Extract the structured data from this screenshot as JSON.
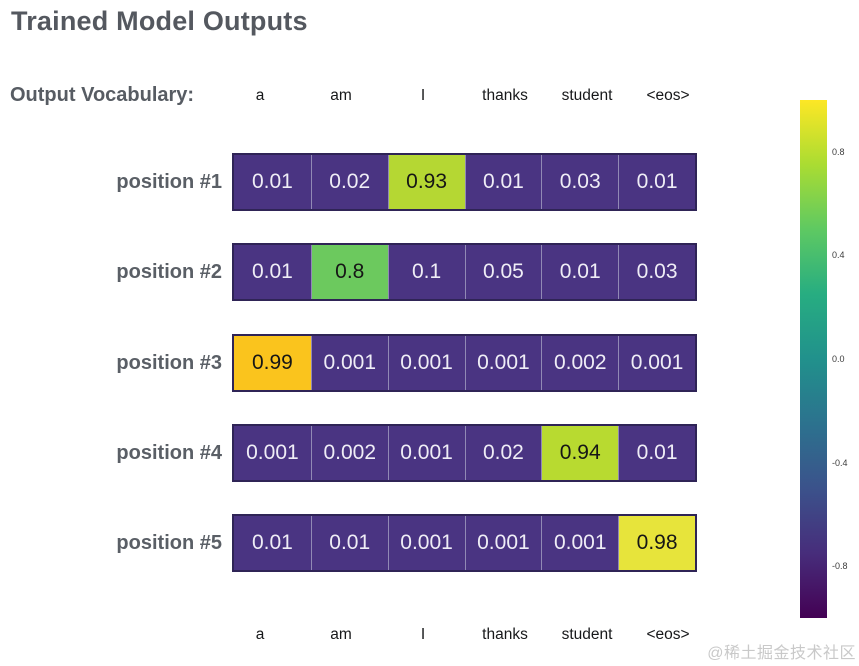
{
  "header": {
    "title": "Trained Model Outputs",
    "vocab_label": "Output Vocabulary:"
  },
  "chart_data": {
    "type": "heatmap",
    "title": "Trained Model Outputs",
    "columns": [
      "a",
      "am",
      "I",
      "thanks",
      "student",
      "<eos>"
    ],
    "rows": [
      "position #1",
      "position #2",
      "position #3",
      "position #4",
      "position #5"
    ],
    "values": [
      [
        0.01,
        0.02,
        0.93,
        0.01,
        0.03,
        0.01
      ],
      [
        0.01,
        0.8,
        0.1,
        0.05,
        0.01,
        0.03
      ],
      [
        0.99,
        0.001,
        0.001,
        0.001,
        0.002,
        0.001
      ],
      [
        0.001,
        0.002,
        0.001,
        0.02,
        0.94,
        0.01
      ],
      [
        0.01,
        0.01,
        0.001,
        0.001,
        0.001,
        0.98
      ]
    ],
    "colormap": "viridis",
    "color_range": [
      -1,
      1
    ],
    "colorbar_ticks": [
      0.8,
      0.4,
      0.0,
      -0.4,
      -0.8
    ],
    "legend_position": "right",
    "grid": false
  },
  "colors": {
    "cell_bg": "#4a3482",
    "cell_text": "#efedf6",
    "highlight_text": "#161616",
    "grid_outer_border": "#2f2456",
    "grid_inner_border": "#9189b5",
    "title_text": "#54585f",
    "label_text": "#5a5f66"
  },
  "highlights": [
    {
      "row": 0,
      "col": 2,
      "color": "#b5d733"
    },
    {
      "row": 1,
      "col": 1,
      "color": "#6cc95e"
    },
    {
      "row": 2,
      "col": 0,
      "color": "#fac41d"
    },
    {
      "row": 3,
      "col": 4,
      "color": "#b8da30"
    },
    {
      "row": 4,
      "col": 5,
      "color": "#e7e43b"
    }
  ],
  "watermark": {
    "text": "@稀土掘金技术社区"
  }
}
